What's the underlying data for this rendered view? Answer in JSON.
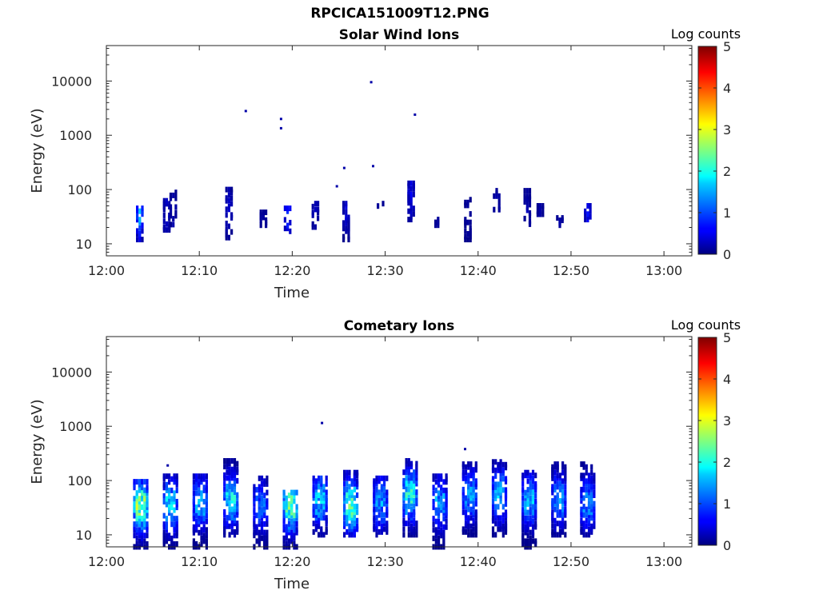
{
  "figure": {
    "title": "RPCICA151009T12.PNG"
  },
  "colormap": {
    "name": "jet",
    "label": "Log counts",
    "range": [
      0,
      5
    ],
    "ticks": [
      "0",
      "1",
      "2",
      "3",
      "4",
      "5"
    ]
  },
  "chart_data": [
    {
      "type": "heatmap",
      "title": "Solar Wind Ions",
      "xlabel": "Time",
      "ylabel": "Energy (eV)",
      "x_range_minutes": [
        0,
        63
      ],
      "x_ticks": [
        "12:00",
        "12:10",
        "12:20",
        "12:30",
        "12:40",
        "12:50",
        "13:00"
      ],
      "y_scale": "log",
      "y_range": [
        6,
        45000
      ],
      "y_ticks": [
        "10",
        "100",
        "1000",
        "10000"
      ],
      "color_range": [
        0,
        5
      ],
      "grid": false,
      "sweeps": [
        {
          "t": 3.6,
          "emin": 12,
          "emax": 45,
          "peak": 1.6,
          "peak_e": 38
        },
        {
          "t": 6.5,
          "emin": 18,
          "emax": 70,
          "peak": 0.5,
          "peak_e": 35
        },
        {
          "t": 7.2,
          "emin": 20,
          "emax": 100,
          "peak": 0.3,
          "peak_e": 40
        },
        {
          "t": 13.2,
          "emin": 13,
          "emax": 100,
          "peak": 0.5,
          "peak_e": 40
        },
        {
          "t": 16.9,
          "emin": 22,
          "emax": 38,
          "peak": 0.2,
          "peak_e": 30
        },
        {
          "t": 19.5,
          "emin": 17,
          "emax": 45,
          "peak": 1.1,
          "peak_e": 38
        },
        {
          "t": 22.5,
          "emin": 18,
          "emax": 55,
          "peak": 0.4,
          "peak_e": 45
        },
        {
          "t": 25.8,
          "emin": 12,
          "emax": 55,
          "peak": 0.5,
          "peak_e": 40
        },
        {
          "t": 29.5,
          "emin": 45,
          "emax": 55,
          "peak": 0.2,
          "peak_e": 50
        },
        {
          "t": 32.8,
          "emin": 28,
          "emax": 130,
          "peak": 0.6,
          "peak_e": 80
        },
        {
          "t": 35.7,
          "emin": 22,
          "emax": 28,
          "peak": 0.2,
          "peak_e": 25
        },
        {
          "t": 38.9,
          "emin": 12,
          "emax": 65,
          "peak": 0.2,
          "peak_e": 30
        },
        {
          "t": 42.0,
          "emin": 38,
          "emax": 95,
          "peak": 0.3,
          "peak_e": 50
        },
        {
          "t": 45.3,
          "emin": 23,
          "emax": 95,
          "peak": 0.3,
          "peak_e": 40
        },
        {
          "t": 46.7,
          "emin": 35,
          "emax": 50,
          "peak": 0.2,
          "peak_e": 40
        },
        {
          "t": 48.8,
          "emin": 22,
          "emax": 30,
          "peak": 0.2,
          "peak_e": 25
        },
        {
          "t": 51.8,
          "emin": 28,
          "emax": 50,
          "peak": 0.7,
          "peak_e": 40
        }
      ],
      "points": [
        {
          "t": 15.0,
          "e": 2800,
          "v": 0.2
        },
        {
          "t": 18.8,
          "e": 2000,
          "v": 0.2
        },
        {
          "t": 18.8,
          "e": 1350,
          "v": 0.2
        },
        {
          "t": 28.5,
          "e": 9500,
          "v": 0.2
        },
        {
          "t": 33.2,
          "e": 2400,
          "v": 0.2
        },
        {
          "t": 25.6,
          "e": 250,
          "v": 0.2
        },
        {
          "t": 28.7,
          "e": 270,
          "v": 0.2
        },
        {
          "t": 24.8,
          "e": 115,
          "v": 0.2
        }
      ]
    },
    {
      "type": "heatmap",
      "title": "Cometary Ions",
      "xlabel": "Time",
      "ylabel": "Energy (eV)",
      "x_range_minutes": [
        0,
        63
      ],
      "x_ticks": [
        "12:00",
        "12:10",
        "12:20",
        "12:30",
        "12:40",
        "12:50",
        "13:00"
      ],
      "y_scale": "log",
      "y_range": [
        6,
        45000
      ],
      "y_ticks": [
        "10",
        "100",
        "1000",
        "10000"
      ],
      "color_range": [
        0,
        5
      ],
      "grid": false,
      "sweeps": [
        {
          "t": 3.7,
          "emin": 6,
          "emax": 95,
          "peak": 3.0,
          "peak_e": 35
        },
        {
          "t": 6.9,
          "emin": 6,
          "emax": 120,
          "peak": 2.0,
          "peak_e": 35
        },
        {
          "t": 10.1,
          "emin": 6,
          "emax": 120,
          "peak": 1.8,
          "peak_e": 40
        },
        {
          "t": 13.4,
          "emin": 10,
          "emax": 230,
          "peak": 2.1,
          "peak_e": 45
        },
        {
          "t": 16.6,
          "emin": 6,
          "emax": 110,
          "peak": 1.3,
          "peak_e": 35
        },
        {
          "t": 19.8,
          "emin": 6,
          "emax": 60,
          "peak": 2.7,
          "peak_e": 35
        },
        {
          "t": 23.0,
          "emin": 10,
          "emax": 110,
          "peak": 1.9,
          "peak_e": 45
        },
        {
          "t": 26.3,
          "emin": 10,
          "emax": 140,
          "peak": 2.6,
          "peak_e": 35
        },
        {
          "t": 29.5,
          "emin": 10,
          "emax": 110,
          "peak": 1.6,
          "peak_e": 40
        },
        {
          "t": 32.7,
          "emin": 10,
          "emax": 230,
          "peak": 2.3,
          "peak_e": 55
        },
        {
          "t": 35.9,
          "emin": 6,
          "emax": 120,
          "peak": 1.6,
          "peak_e": 40
        },
        {
          "t": 39.1,
          "emin": 10,
          "emax": 200,
          "peak": 1.6,
          "peak_e": 55
        },
        {
          "t": 42.3,
          "emin": 10,
          "emax": 220,
          "peak": 1.8,
          "peak_e": 55
        },
        {
          "t": 45.5,
          "emin": 6,
          "emax": 140,
          "peak": 1.8,
          "peak_e": 45
        },
        {
          "t": 48.7,
          "emin": 10,
          "emax": 200,
          "peak": 1.5,
          "peak_e": 45
        },
        {
          "t": 51.8,
          "emin": 10,
          "emax": 200,
          "peak": 1.6,
          "peak_e": 40
        }
      ],
      "points": [
        {
          "t": 23.2,
          "e": 1150,
          "v": 0.2
        },
        {
          "t": 38.6,
          "e": 380,
          "v": 0.2
        },
        {
          "t": 6.6,
          "e": 190,
          "v": 0.2
        }
      ]
    }
  ]
}
